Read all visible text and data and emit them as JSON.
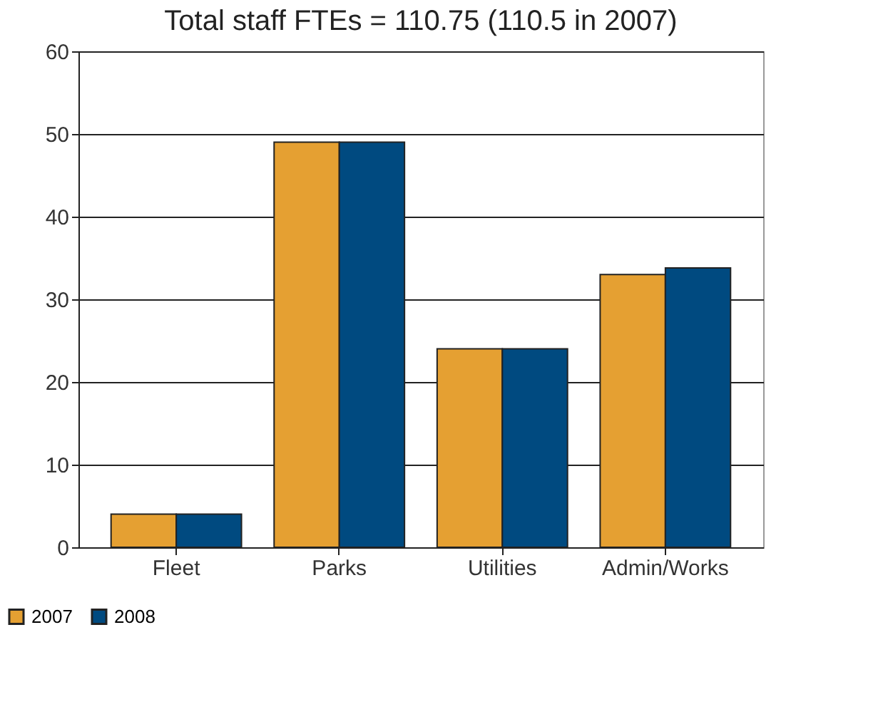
{
  "chart_data": {
    "type": "bar",
    "subtitle": "Total staff FTEs = 110.75 (110.5 in 2007)",
    "categories": [
      "Fleet",
      "Parks",
      "Utilities",
      "Admin/Works"
    ],
    "series": [
      {
        "name": "2007",
        "color": "#e5a032",
        "values": [
          4,
          49,
          24,
          33
        ]
      },
      {
        "name": "2008",
        "color": "#004a80",
        "values": [
          4,
          49,
          24,
          33.8
        ]
      }
    ],
    "ylim": [
      0,
      60
    ],
    "yticks": [
      0,
      10,
      20,
      30,
      40,
      50,
      60
    ],
    "grid": "y",
    "legend": "bottom left"
  }
}
